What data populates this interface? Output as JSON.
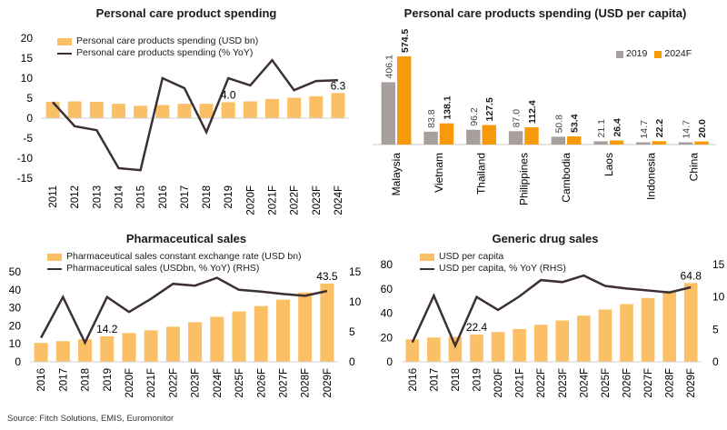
{
  "colors": {
    "bar": "#fbc065",
    "line": "#3c2f35",
    "orange": "#f79a0a",
    "grey": "#a99e9e"
  },
  "source": "Source: Fitch Solutions, EMIS, Euromonitor",
  "chart_data": [
    {
      "type": "bar",
      "title": "Personal care product spending",
      "categories": [
        "2011",
        "2012",
        "2013",
        "2014",
        "2015",
        "2016",
        "2017",
        "2018",
        "2019",
        "2020F",
        "2021F",
        "2022F",
        "2023F",
        "2024F"
      ],
      "series": [
        {
          "name": "Personal care products spending (USD bn)",
          "kind": "bar",
          "values": [
            4.1,
            4.2,
            4.1,
            3.6,
            3.1,
            3.3,
            3.6,
            3.6,
            4.0,
            4.2,
            4.8,
            5.1,
            5.5,
            6.3
          ]
        },
        {
          "name": "Personal care products spending  (% YoY)",
          "kind": "line",
          "values": [
            4.0,
            -2.0,
            -3.0,
            -12.5,
            -13.0,
            10.0,
            7.5,
            -3.5,
            10.0,
            8.2,
            14.5,
            7.0,
            9.3,
            9.5
          ]
        }
      ],
      "data_labels": [
        {
          "index": 8,
          "text": "4.0"
        },
        {
          "index": 13,
          "text": "6.3"
        }
      ],
      "ylim": [
        -15,
        20
      ],
      "yticks": [
        "-15",
        "-10",
        "-5",
        "0",
        "5",
        "10",
        "15",
        "20"
      ],
      "legend": "top-left"
    },
    {
      "type": "bar",
      "title": "Personal care products spending (USD per capita)",
      "categories": [
        "Malaysia",
        "Vietnam",
        "Thailand",
        "Philippines",
        "Cambodia",
        "Laos",
        "Indonesia",
        "China"
      ],
      "series": [
        {
          "name": "2019",
          "values": [
            406.1,
            83.8,
            96.2,
            87.0,
            50.8,
            21.1,
            14.7,
            14.7
          ]
        },
        {
          "name": "2024F",
          "values": [
            574.5,
            138.1,
            127.5,
            112.4,
            53.4,
            26.4,
            22.2,
            20.0
          ]
        }
      ],
      "value_labels": [
        [
          "406.1",
          "574.5"
        ],
        [
          "83.8",
          "138.1"
        ],
        [
          "96.2",
          "127.5"
        ],
        [
          "87.0",
          "112.4"
        ],
        [
          "50.8",
          "53.4"
        ],
        [
          "21.1",
          "26.4"
        ],
        [
          "14.7",
          "22.2"
        ],
        [
          "14.7",
          "20.0"
        ]
      ],
      "legend": "top-right"
    },
    {
      "type": "bar",
      "title": "Pharmaceutical sales",
      "categories": [
        "2016",
        "2017",
        "2018",
        "2019",
        "2020F",
        "2021F",
        "2022F",
        "2023F",
        "2024F",
        "2025F",
        "2026F",
        "2027F",
        "2028F",
        "2029F"
      ],
      "series": [
        {
          "name": "Pharmaceutical sales constant exchange rate (USD bn)",
          "kind": "bar",
          "axis": "left",
          "values": [
            10.5,
            11.5,
            12.5,
            14.2,
            16.0,
            17.5,
            19.5,
            22.0,
            25.0,
            28.0,
            31.0,
            34.5,
            38.5,
            43.5
          ]
        },
        {
          "name": "Pharmaceutical sales (USDbn, % YoY) (RHS)",
          "kind": "line",
          "axis": "right",
          "values": [
            4.0,
            10.8,
            3.2,
            10.8,
            8.3,
            10.5,
            13.0,
            12.7,
            14.0,
            12.0,
            11.7,
            11.3,
            11.0,
            11.8
          ]
        }
      ],
      "data_labels": [
        {
          "index": 3,
          "text": "14.2"
        },
        {
          "index": 13,
          "text": "43.5"
        }
      ],
      "ylim": [
        0,
        50
      ],
      "yticks": [
        "0",
        "10",
        "20",
        "30",
        "40",
        "50"
      ],
      "y2lim": [
        0,
        15
      ],
      "y2ticks": [
        "0",
        "5",
        "10",
        "15"
      ],
      "legend": "top-left"
    },
    {
      "type": "bar",
      "title": "Generic drug sales",
      "categories": [
        "2016",
        "2017",
        "2018",
        "2019",
        "2020F",
        "2021F",
        "2022F",
        "2023F",
        "2024F",
        "2025F",
        "2026F",
        "2027F",
        "2028F",
        "2029F"
      ],
      "series": [
        {
          "name": "USD per capita",
          "kind": "bar",
          "axis": "left",
          "values": [
            18.5,
            20.0,
            20.5,
            22.4,
            24.5,
            27.0,
            30.5,
            34.0,
            38.0,
            43.0,
            47.5,
            52.5,
            58.5,
            64.8
          ]
        },
        {
          "name": "USD per capita, % YoY (RHS)",
          "kind": "line",
          "axis": "right",
          "values": [
            3.0,
            10.2,
            2.5,
            10.0,
            8.0,
            10.1,
            12.6,
            12.3,
            13.3,
            11.7,
            11.3,
            11.0,
            10.7,
            11.5
          ]
        }
      ],
      "data_labels": [
        {
          "index": 3,
          "text": "22.4"
        },
        {
          "index": 13,
          "text": "64.8"
        }
      ],
      "ylim": [
        0,
        80
      ],
      "yticks": [
        "0",
        "20",
        "40",
        "60",
        "80"
      ],
      "y2lim": [
        0,
        15
      ],
      "y2ticks": [
        "0",
        "5",
        "10",
        "15"
      ],
      "legend": "top-left"
    }
  ]
}
